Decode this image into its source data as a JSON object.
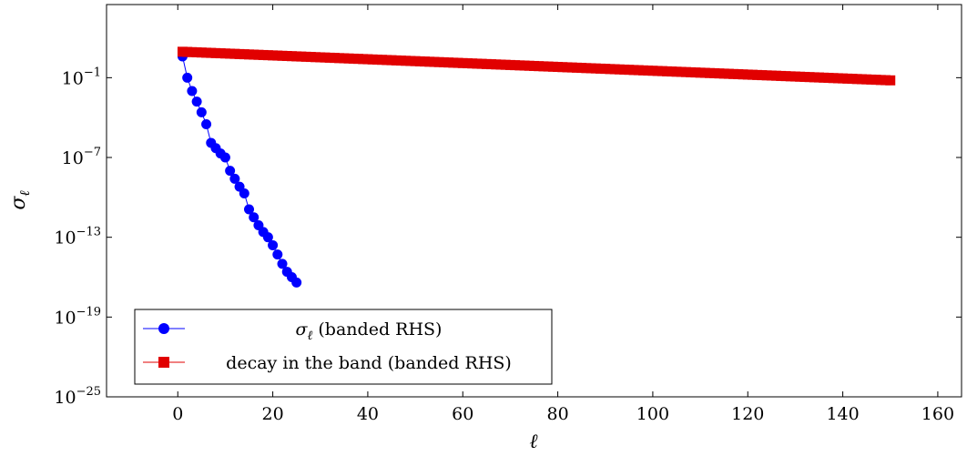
{
  "chart_data": {
    "type": "line",
    "title": "",
    "xlabel": "ℓ",
    "ylabel": "σℓ",
    "xlim": [
      -15,
      165
    ],
    "ylim_log10": [
      -25,
      4.5
    ],
    "y_scale": "log",
    "x_ticks": [
      0,
      20,
      40,
      60,
      80,
      100,
      120,
      140,
      160
    ],
    "x_tick_labels": [
      "0",
      "20",
      "40",
      "60",
      "80",
      "100",
      "120",
      "140",
      "160"
    ],
    "y_tick_exponents": [
      -25,
      -19,
      -13,
      -7,
      -1
    ],
    "y_tick_labels": [
      {
        "base": "10",
        "exp": "−25"
      },
      {
        "base": "10",
        "exp": "−19"
      },
      {
        "base": "10",
        "exp": "−13"
      },
      {
        "base": "10",
        "exp": "−7"
      },
      {
        "base": "10",
        "exp": "−1"
      }
    ],
    "grid": false,
    "legend_position": "bottom-left",
    "series": [
      {
        "name": "σℓ (banded RHS)",
        "color": "#0000ff",
        "marker": "circle",
        "x": [
          1,
          2,
          3,
          4,
          5,
          6,
          7,
          8,
          9,
          10,
          11,
          12,
          13,
          14,
          15,
          16,
          17,
          18,
          19,
          20,
          21,
          22,
          23,
          24,
          25
        ],
        "y_log10": [
          0.6,
          -1.0,
          -2.0,
          -2.8,
          -3.6,
          -4.5,
          -5.9,
          -6.3,
          -6.7,
          -7.0,
          -8.0,
          -8.6,
          -9.2,
          -9.7,
          -10.9,
          -11.5,
          -12.1,
          -12.6,
          -13.0,
          -13.6,
          -14.3,
          -15.0,
          -15.6,
          -16.0,
          -16.4
        ]
      },
      {
        "name": "decay in the band (banded RHS)",
        "color": "#e10000",
        "marker": "square",
        "x_start": 1,
        "x_end": 150,
        "y_log10_start": 0.95,
        "y_log10_end": -1.2
      }
    ]
  },
  "legend": {
    "items": [
      {
        "symbol": "σ",
        "sub": "ℓ",
        "suffix": " (banded RHS)"
      },
      {
        "text": "decay in the band (banded RHS)"
      }
    ]
  },
  "axes": {
    "xlabel": "ℓ",
    "ylabel_symbol": "σ",
    "ylabel_sub": "ℓ"
  }
}
